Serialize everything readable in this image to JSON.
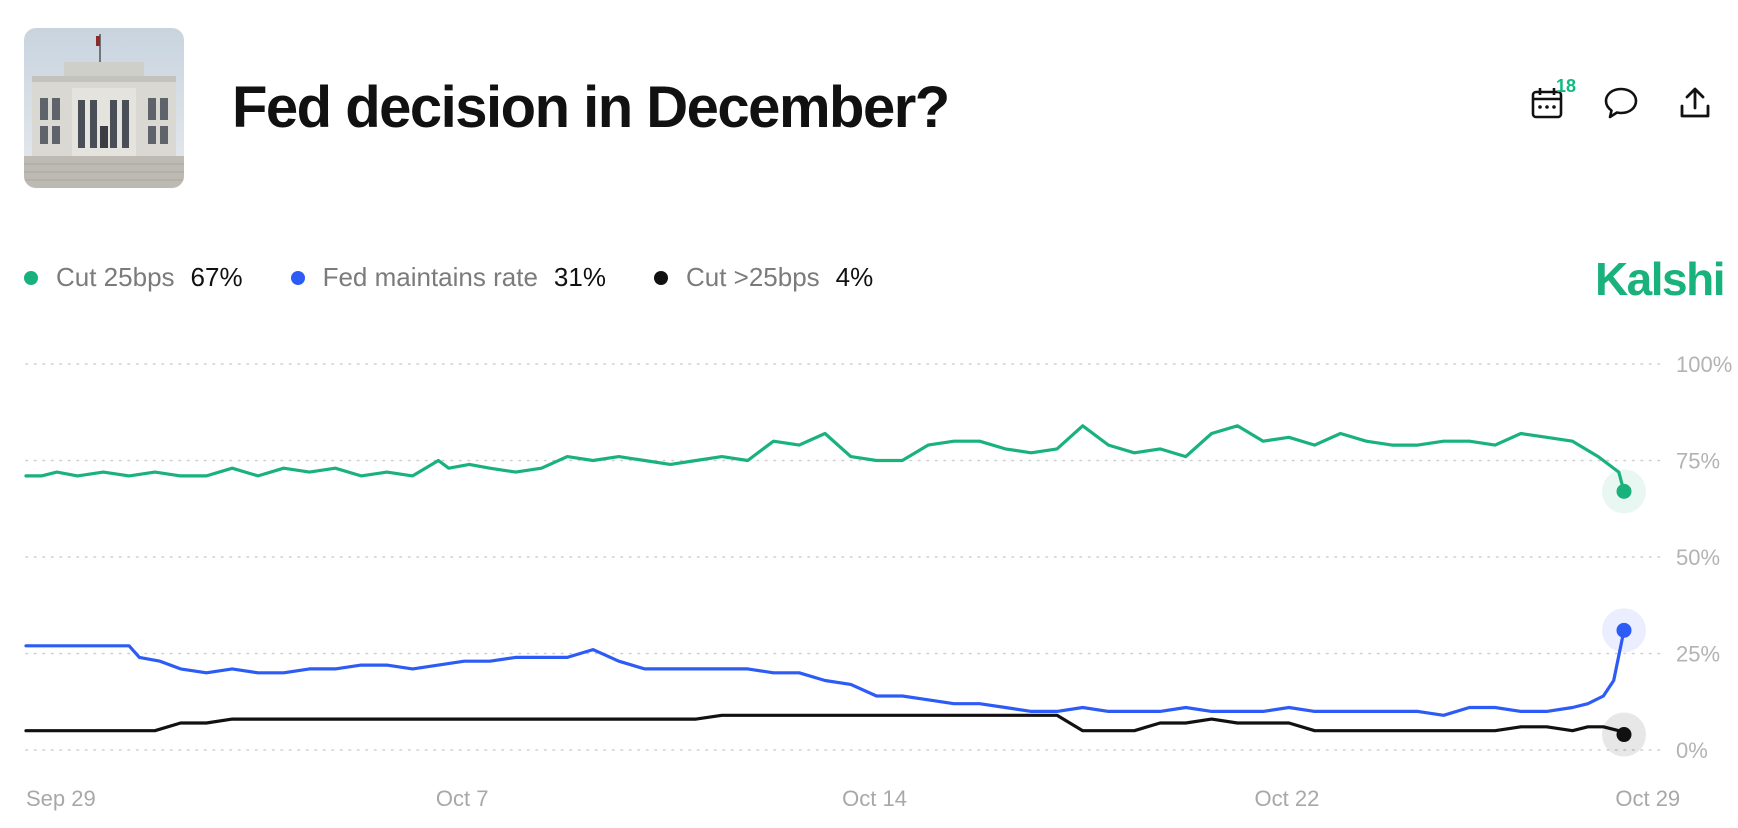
{
  "header": {
    "title": "Fed decision in December?",
    "calendar_badge": "18",
    "icons": [
      "calendar-icon",
      "comment-icon",
      "share-icon"
    ]
  },
  "brand": {
    "name": "Kalshi",
    "color": "#1ab27c"
  },
  "legend": [
    {
      "name": "Cut 25bps",
      "value": "67%",
      "color": "#1ab27c"
    },
    {
      "name": "Fed maintains rate",
      "value": "31%",
      "color": "#2d5bf5"
    },
    {
      "name": "Cut >25bps",
      "value": "4%",
      "color": "#111111"
    }
  ],
  "chart_data": {
    "type": "line",
    "x_ticks": [
      "Sep 29",
      "Oct 7",
      "Oct 14",
      "Oct 22",
      "Oct 29"
    ],
    "y_ticks": [
      "0%",
      "25%",
      "50%",
      "75%",
      "100%"
    ],
    "ylim": [
      0,
      100
    ],
    "xlim": [
      0,
      31
    ],
    "x_tick_values": [
      0.5,
      8.5,
      16.5,
      24.5,
      31.5
    ],
    "grid": true,
    "legend_position": "top-left",
    "series": [
      {
        "name": "Cut 25bps",
        "color": "#1ab27c",
        "last": 67,
        "points": [
          [
            0,
            71
          ],
          [
            0.3,
            71
          ],
          [
            0.6,
            72
          ],
          [
            1,
            71
          ],
          [
            1.5,
            72
          ],
          [
            2,
            71
          ],
          [
            2.5,
            72
          ],
          [
            3,
            71
          ],
          [
            3.5,
            71
          ],
          [
            4,
            73
          ],
          [
            4.5,
            71
          ],
          [
            5,
            73
          ],
          [
            5.5,
            72
          ],
          [
            6,
            73
          ],
          [
            6.5,
            71
          ],
          [
            7,
            72
          ],
          [
            7.5,
            71
          ],
          [
            8,
            75
          ],
          [
            8.2,
            73
          ],
          [
            8.6,
            74
          ],
          [
            9,
            73
          ],
          [
            9.5,
            72
          ],
          [
            10,
            73
          ],
          [
            10.5,
            76
          ],
          [
            11,
            75
          ],
          [
            11.5,
            76
          ],
          [
            12,
            75
          ],
          [
            12.5,
            74
          ],
          [
            13,
            75
          ],
          [
            13.5,
            76
          ],
          [
            14,
            75
          ],
          [
            14.5,
            80
          ],
          [
            15,
            79
          ],
          [
            15.5,
            82
          ],
          [
            16,
            76
          ],
          [
            16.5,
            75
          ],
          [
            17,
            75
          ],
          [
            17.5,
            79
          ],
          [
            18,
            80
          ],
          [
            18.5,
            80
          ],
          [
            19,
            78
          ],
          [
            19.5,
            77
          ],
          [
            20,
            78
          ],
          [
            20.5,
            84
          ],
          [
            21,
            79
          ],
          [
            21.5,
            77
          ],
          [
            22,
            78
          ],
          [
            22.5,
            76
          ],
          [
            23,
            82
          ],
          [
            23.5,
            84
          ],
          [
            24,
            80
          ],
          [
            24.5,
            81
          ],
          [
            25,
            79
          ],
          [
            25.5,
            82
          ],
          [
            26,
            80
          ],
          [
            26.5,
            79
          ],
          [
            27,
            79
          ],
          [
            27.5,
            80
          ],
          [
            28,
            80
          ],
          [
            28.5,
            79
          ],
          [
            29,
            82
          ],
          [
            29.5,
            81
          ],
          [
            30,
            80
          ],
          [
            30.5,
            76
          ],
          [
            30.7,
            74
          ],
          [
            30.9,
            72
          ],
          [
            31,
            67
          ]
        ]
      },
      {
        "name": "Fed maintains rate",
        "color": "#2d5bf5",
        "last": 31,
        "points": [
          [
            0,
            27
          ],
          [
            0.5,
            27
          ],
          [
            1,
            27
          ],
          [
            1.5,
            27
          ],
          [
            2,
            27
          ],
          [
            2.2,
            24
          ],
          [
            2.6,
            23
          ],
          [
            3,
            21
          ],
          [
            3.5,
            20
          ],
          [
            4,
            21
          ],
          [
            4.5,
            20
          ],
          [
            5,
            20
          ],
          [
            5.5,
            21
          ],
          [
            6,
            21
          ],
          [
            6.5,
            22
          ],
          [
            7,
            22
          ],
          [
            7.5,
            21
          ],
          [
            8,
            22
          ],
          [
            8.5,
            23
          ],
          [
            9,
            23
          ],
          [
            9.5,
            24
          ],
          [
            10,
            24
          ],
          [
            10.5,
            24
          ],
          [
            11,
            26
          ],
          [
            11.5,
            23
          ],
          [
            12,
            21
          ],
          [
            12.5,
            21
          ],
          [
            13,
            21
          ],
          [
            13.5,
            21
          ],
          [
            14,
            21
          ],
          [
            14.5,
            20
          ],
          [
            15,
            20
          ],
          [
            15.5,
            18
          ],
          [
            16,
            17
          ],
          [
            16.5,
            14
          ],
          [
            17,
            14
          ],
          [
            17.5,
            13
          ],
          [
            18,
            12
          ],
          [
            18.5,
            12
          ],
          [
            19,
            11
          ],
          [
            19.5,
            10
          ],
          [
            20,
            10
          ],
          [
            20.5,
            11
          ],
          [
            21,
            10
          ],
          [
            21.5,
            10
          ],
          [
            22,
            10
          ],
          [
            22.5,
            11
          ],
          [
            23,
            10
          ],
          [
            23.5,
            10
          ],
          [
            24,
            10
          ],
          [
            24.5,
            11
          ],
          [
            25,
            10
          ],
          [
            25.5,
            10
          ],
          [
            26,
            10
          ],
          [
            26.5,
            10
          ],
          [
            27,
            10
          ],
          [
            27.5,
            9
          ],
          [
            28,
            11
          ],
          [
            28.5,
            11
          ],
          [
            29,
            10
          ],
          [
            29.5,
            10
          ],
          [
            30,
            11
          ],
          [
            30.3,
            12
          ],
          [
            30.6,
            14
          ],
          [
            30.8,
            18
          ],
          [
            31,
            31
          ]
        ]
      },
      {
        "name": "Cut >25bps",
        "color": "#111111",
        "last": 4,
        "points": [
          [
            0,
            5
          ],
          [
            0.5,
            5
          ],
          [
            1,
            5
          ],
          [
            1.5,
            5
          ],
          [
            2,
            5
          ],
          [
            2.5,
            5
          ],
          [
            3,
            7
          ],
          [
            3.5,
            7
          ],
          [
            4,
            8
          ],
          [
            4.5,
            8
          ],
          [
            5,
            8
          ],
          [
            5.5,
            8
          ],
          [
            6,
            8
          ],
          [
            6.5,
            8
          ],
          [
            7,
            8
          ],
          [
            7.5,
            8
          ],
          [
            8,
            8
          ],
          [
            8.5,
            8
          ],
          [
            9,
            8
          ],
          [
            9.5,
            8
          ],
          [
            10,
            8
          ],
          [
            10.5,
            8
          ],
          [
            11,
            8
          ],
          [
            11.5,
            8
          ],
          [
            12,
            8
          ],
          [
            12.5,
            8
          ],
          [
            13,
            8
          ],
          [
            13.5,
            9
          ],
          [
            14,
            9
          ],
          [
            14.5,
            9
          ],
          [
            15,
            9
          ],
          [
            15.5,
            9
          ],
          [
            16,
            9
          ],
          [
            16.5,
            9
          ],
          [
            17,
            9
          ],
          [
            17.5,
            9
          ],
          [
            18,
            9
          ],
          [
            18.5,
            9
          ],
          [
            19,
            9
          ],
          [
            19.5,
            9
          ],
          [
            20,
            9
          ],
          [
            20.5,
            5
          ],
          [
            21,
            5
          ],
          [
            21.5,
            5
          ],
          [
            22,
            7
          ],
          [
            22.5,
            7
          ],
          [
            23,
            8
          ],
          [
            23.5,
            7
          ],
          [
            24,
            7
          ],
          [
            24.5,
            7
          ],
          [
            25,
            5
          ],
          [
            25.5,
            5
          ],
          [
            26,
            5
          ],
          [
            26.5,
            5
          ],
          [
            27,
            5
          ],
          [
            27.5,
            5
          ],
          [
            28,
            5
          ],
          [
            28.5,
            5
          ],
          [
            29,
            6
          ],
          [
            29.5,
            6
          ],
          [
            30,
            5
          ],
          [
            30.3,
            6
          ],
          [
            30.6,
            6
          ],
          [
            30.9,
            5
          ],
          [
            31,
            4
          ]
        ]
      }
    ]
  }
}
